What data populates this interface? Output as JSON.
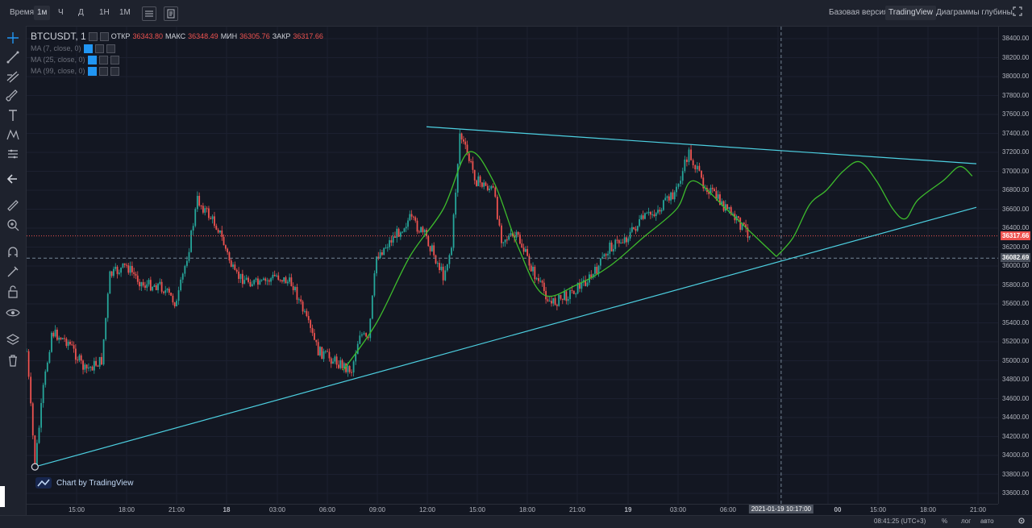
{
  "topbar": {
    "time_label": "Время",
    "intervals": [
      "1м",
      "Ч",
      "Д",
      "1Н",
      "1М"
    ],
    "active_interval": "1м",
    "views": [
      "Базовая версия",
      "TradingView",
      "Диаграммы глубины"
    ],
    "active_view": "TradingView"
  },
  "legend": {
    "symbol": "BTCUSDT, 1",
    "open_label": "ОТКР",
    "open": "36343.80",
    "high_label": "МАКС",
    "high": "36348.49",
    "low_label": "МИН",
    "low": "36305.76",
    "close_label": "ЗАКР",
    "close": "36317.66",
    "ma": [
      "MA (7, close, 0)",
      "MA (25, close, 0)",
      "MA (99, close, 0)"
    ]
  },
  "watermark": "Chart by TradingView",
  "y_axis": {
    "ticks": [
      "38400.00",
      "38200.00",
      "38000.00",
      "37800.00",
      "37600.00",
      "37400.00",
      "37200.00",
      "37000.00",
      "36800.00",
      "36600.00",
      "36400.00",
      "36200.00",
      "36000.00",
      "35800.00",
      "35600.00",
      "35400.00",
      "35200.00",
      "35000.00",
      "34800.00",
      "34600.00",
      "34400.00",
      "34200.00",
      "34000.00",
      "33800.00",
      "33600.00"
    ],
    "current_price": "36317.66",
    "crosshair_price": "36082.69"
  },
  "x_axis": {
    "ticks": [
      "15:00",
      "18:00",
      "21:00",
      "18",
      "03:00",
      "06:00",
      "09:00",
      "12:00",
      "15:00",
      "18:00",
      "21:00",
      "19",
      "03:00",
      "06:00",
      "00",
      "15:00",
      "18:00",
      "21:00"
    ],
    "crosshair_time": "2021-01-19 10:17:00"
  },
  "status": {
    "time": "08:41:25 (UTC+3)",
    "percent": "%",
    "log": "лог",
    "auto": "авто"
  },
  "colors": {
    "up": "#26a69a",
    "down": "#ef5350",
    "trendline": "#4dd0e1",
    "ma_line": "#3dbb2c",
    "price_line": "#ef5350"
  },
  "chart_data": {
    "type": "candlestick",
    "symbol": "BTCUSDT",
    "interval": "1m",
    "ylim": [
      33500,
      38500
    ],
    "price_path": [
      {
        "t": "17 13:00",
        "p": 35100
      },
      {
        "t": "17 13:30",
        "p": 33900
      },
      {
        "t": "17 14:00",
        "p": 34700
      },
      {
        "t": "17 14:30",
        "p": 35300
      },
      {
        "t": "17 15:30",
        "p": 35200
      },
      {
        "t": "17 16:30",
        "p": 34900
      },
      {
        "t": "17 17:30",
        "p": 35000
      },
      {
        "t": "17 18:00",
        "p": 35900
      },
      {
        "t": "17 19:00",
        "p": 36000
      },
      {
        "t": "17 20:00",
        "p": 35800
      },
      {
        "t": "17 21:00",
        "p": 35800
      },
      {
        "t": "17 22:00",
        "p": 35600
      },
      {
        "t": "17 22:45",
        "p": 36200
      },
      {
        "t": "17 23:15",
        "p": 36700
      },
      {
        "t": "18 00:30",
        "p": 36400
      },
      {
        "t": "18 01:30",
        "p": 35900
      },
      {
        "t": "18 03:00",
        "p": 35800
      },
      {
        "t": "18 04:00",
        "p": 35900
      },
      {
        "t": "18 05:00",
        "p": 35800
      },
      {
        "t": "18 06:30",
        "p": 35100
      },
      {
        "t": "18 07:30",
        "p": 35000
      },
      {
        "t": "18 08:30",
        "p": 34900
      },
      {
        "t": "18 09:00",
        "p": 35300
      },
      {
        "t": "18 09:30",
        "p": 35200
      },
      {
        "t": "18 10:00",
        "p": 36100
      },
      {
        "t": "18 11:00",
        "p": 36300
      },
      {
        "t": "18 12:00",
        "p": 36500
      },
      {
        "t": "18 13:00",
        "p": 36300
      },
      {
        "t": "18 14:00",
        "p": 35900
      },
      {
        "t": "18 14:30",
        "p": 36200
      },
      {
        "t": "18 15:00",
        "p": 37400
      },
      {
        "t": "18 16:00",
        "p": 36900
      },
      {
        "t": "18 17:00",
        "p": 36800
      },
      {
        "t": "18 17:30",
        "p": 36300
      },
      {
        "t": "18 18:30",
        "p": 36300
      },
      {
        "t": "18 19:30",
        "p": 35900
      },
      {
        "t": "18 20:30",
        "p": 35600
      },
      {
        "t": "18 21:30",
        "p": 35700
      },
      {
        "t": "18 23:00",
        "p": 35900
      },
      {
        "t": "19 00:00",
        "p": 36200
      },
      {
        "t": "19 01:00",
        "p": 36300
      },
      {
        "t": "19 02:00",
        "p": 36500
      },
      {
        "t": "19 03:00",
        "p": 36600
      },
      {
        "t": "19 04:00",
        "p": 36800
      },
      {
        "t": "19 04:45",
        "p": 37200
      },
      {
        "t": "19 05:30",
        "p": 36900
      },
      {
        "t": "19 06:30",
        "p": 36700
      },
      {
        "t": "19 07:30",
        "p": 36500
      },
      {
        "t": "19 08:30",
        "p": 36317
      }
    ],
    "ma_line": [
      {
        "t": "18 08:00",
        "p": 34900
      },
      {
        "t": "18 10:00",
        "p": 35400
      },
      {
        "t": "18 12:00",
        "p": 36100
      },
      {
        "t": "18 14:00",
        "p": 36600
      },
      {
        "t": "18 15:30",
        "p": 37200
      },
      {
        "t": "18 17:00",
        "p": 36900
      },
      {
        "t": "18 18:30",
        "p": 36200
      },
      {
        "t": "18 20:00",
        "p": 35700
      },
      {
        "t": "18 22:00",
        "p": 35800
      },
      {
        "t": "19 00:00",
        "p": 36000
      },
      {
        "t": "19 02:00",
        "p": 36300
      },
      {
        "t": "19 04:00",
        "p": 36600
      },
      {
        "t": "19 05:00",
        "p": 36900
      },
      {
        "t": "19 07:00",
        "p": 36600
      },
      {
        "t": "19 08:30",
        "p": 36350
      },
      {
        "t": "19 10:00",
        "p": 36100
      }
    ],
    "projection": [
      {
        "t": "19 10:00",
        "p": 36100
      },
      {
        "t": "19 11:00",
        "p": 36300
      },
      {
        "t": "19 12:00",
        "p": 36650
      },
      {
        "t": "19 13:00",
        "p": 36800
      },
      {
        "t": "19 14:00",
        "p": 37000
      },
      {
        "t": "19 15:00",
        "p": 37100
      },
      {
        "t": "19 16:00",
        "p": 36900
      },
      {
        "t": "19 17:00",
        "p": 36600
      },
      {
        "t": "19 17:45",
        "p": 36500
      },
      {
        "t": "19 18:30",
        "p": 36700
      },
      {
        "t": "19 20:00",
        "p": 36900
      },
      {
        "t": "19 21:00",
        "p": 37050
      },
      {
        "t": "19 21:45",
        "p": 36950
      }
    ],
    "trendlines": [
      {
        "from": {
          "t": "17 13:30",
          "p": 33880
        },
        "to": {
          "t": "19 22:00",
          "p": 36620
        }
      },
      {
        "from": {
          "t": "18 13:00",
          "p": 37470
        },
        "to": {
          "t": "19 22:00",
          "p": 37080
        }
      }
    ],
    "current_price": 36317.66,
    "crosshair": {
      "time": "2021-01-19 10:17:00",
      "price": 36082.69
    }
  }
}
